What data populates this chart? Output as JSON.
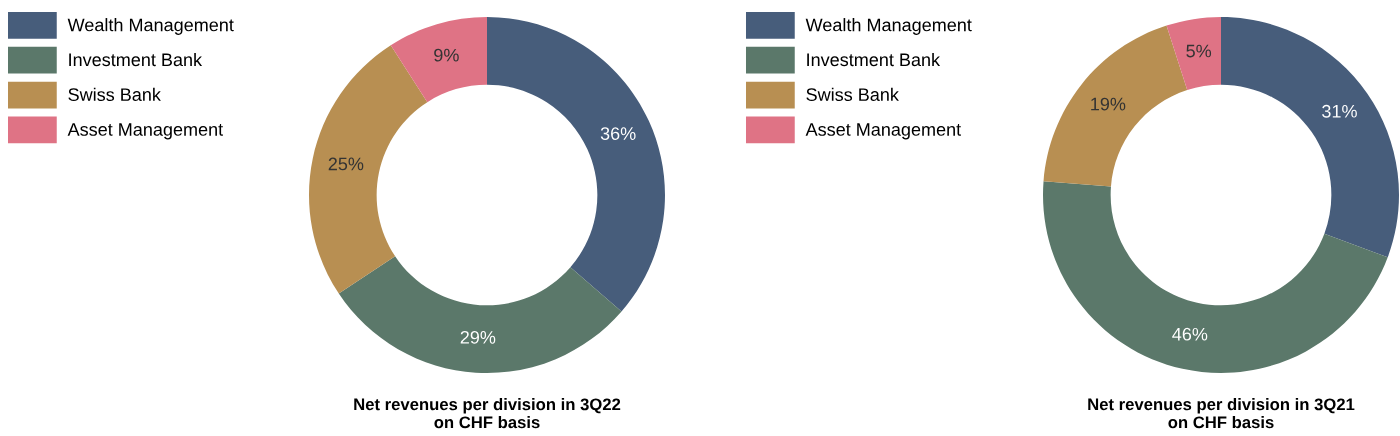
{
  "chart_data": [
    {
      "type": "donut",
      "title": "Net revenues per division in 3Q22\non CHF basis",
      "categories": [
        "Wealth Management",
        "Investment Bank",
        "Swiss Bank",
        "Asset Management"
      ],
      "values": [
        36,
        29,
        25,
        9
      ],
      "colors": [
        "#475d7b",
        "#5b786a",
        "#b88f52",
        "#df7385"
      ],
      "value_labels": [
        "36%",
        "29%",
        "25%",
        "9%"
      ],
      "legend": "top left"
    },
    {
      "type": "donut",
      "title": "Net revenues per division in 3Q21\non CHF basis",
      "categories": [
        "Wealth Management",
        "Investment Bank",
        "Swiss Bank",
        "Asset Management"
      ],
      "values": [
        31,
        46,
        19,
        5
      ],
      "colors": [
        "#475d7b",
        "#5b786a",
        "#b88f52",
        "#df7385"
      ],
      "value_labels": [
        "31%",
        "46%",
        "19%",
        "5%"
      ],
      "legend": "top left"
    }
  ]
}
